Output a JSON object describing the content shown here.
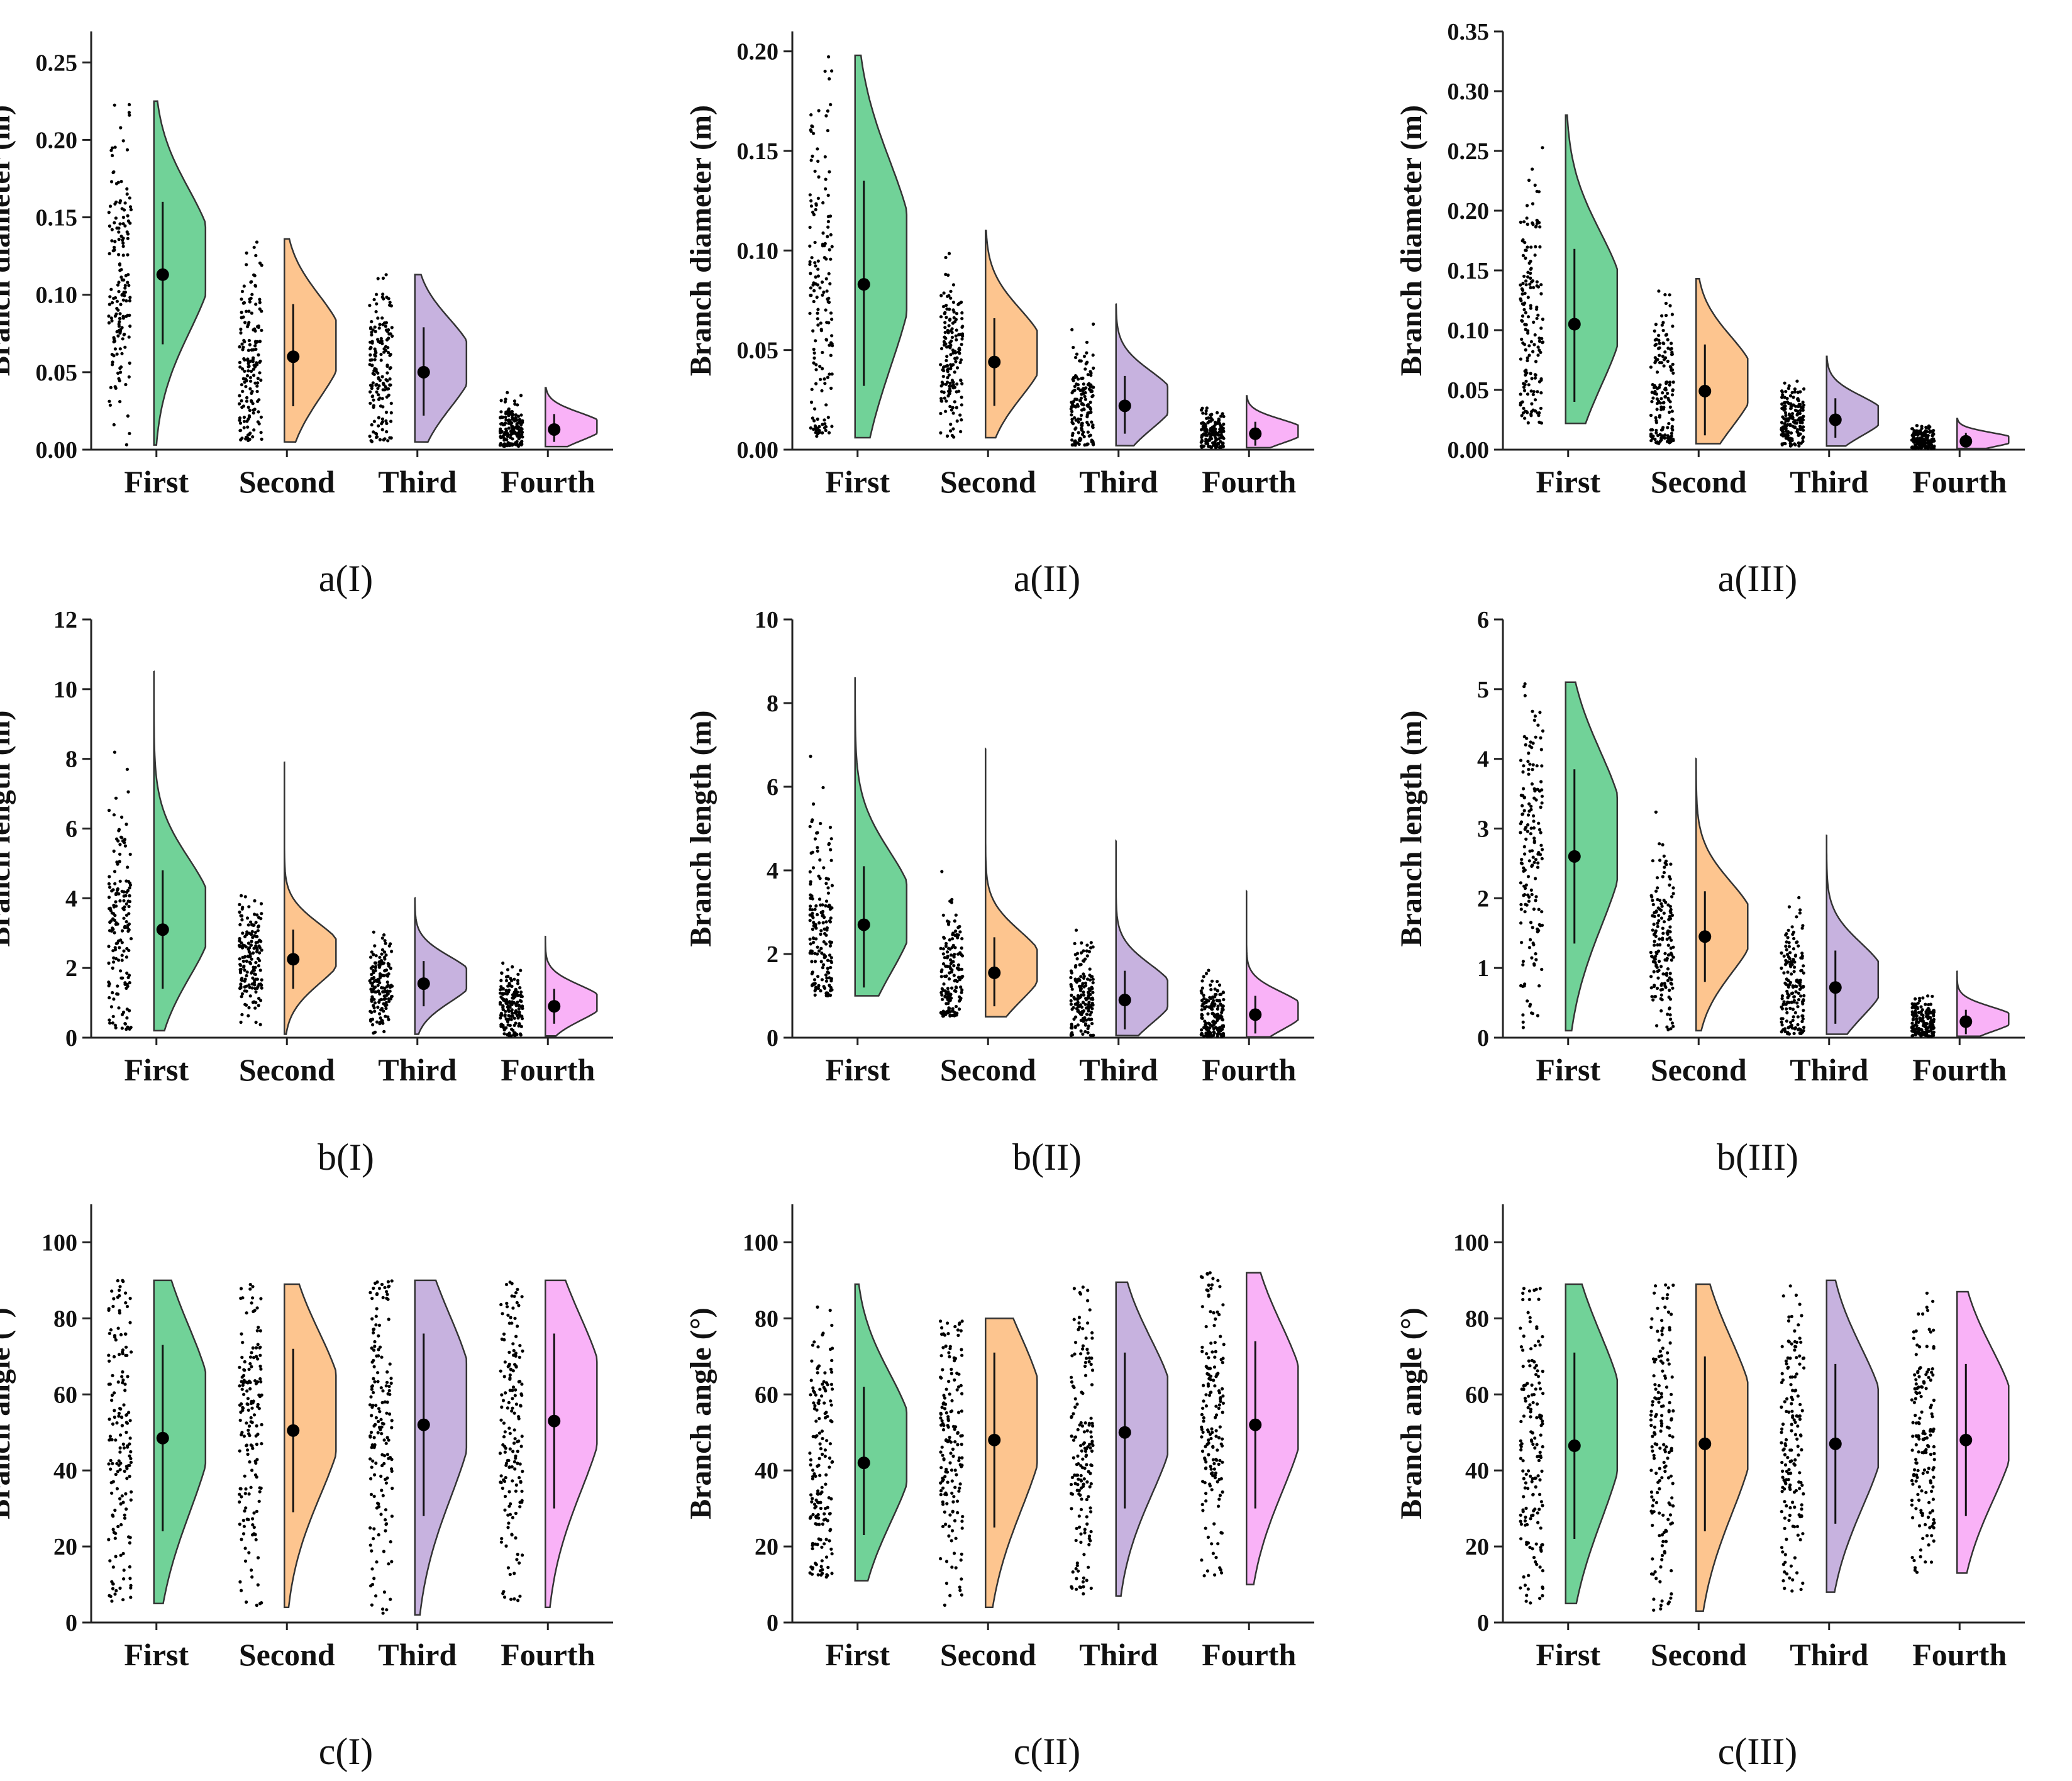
{
  "figure": {
    "category_colors": [
      "#71d298",
      "#fdc58f",
      "#c7b2df",
      "#f9b2f7"
    ],
    "marker_color": "#000000"
  },
  "chart_data": [
    {
      "panel": "a(I)",
      "type": "raincloud",
      "ylabel": "Branch diameter (m)",
      "categories": [
        "First",
        "Second",
        "Third",
        "Fourth"
      ],
      "ylim": [
        0,
        0.27
      ],
      "yticks": [
        0.0,
        0.05,
        0.1,
        0.15,
        0.2,
        0.25
      ],
      "yticklabels": [
        "0.00",
        "0.05",
        "0.10",
        "0.15",
        "0.20",
        "0.25"
      ],
      "series": [
        {
          "name": "First",
          "mean": 0.113,
          "sd_low": 0.068,
          "sd_high": 0.16,
          "min": 0.003,
          "max": 0.225
        },
        {
          "name": "Second",
          "mean": 0.06,
          "sd_low": 0.028,
          "sd_high": 0.094,
          "min": 0.005,
          "max": 0.136
        },
        {
          "name": "Third",
          "mean": 0.05,
          "sd_low": 0.022,
          "sd_high": 0.079,
          "min": 0.005,
          "max": 0.113
        },
        {
          "name": "Fourth",
          "mean": 0.013,
          "sd_low": 0.005,
          "sd_high": 0.023,
          "min": 0.002,
          "max": 0.04
        }
      ]
    },
    {
      "panel": "a(II)",
      "type": "raincloud",
      "ylabel": "Branch diameter (m)",
      "categories": [
        "First",
        "Second",
        "Third",
        "Fourth"
      ],
      "ylim": [
        0,
        0.21
      ],
      "yticks": [
        0.0,
        0.05,
        0.1,
        0.15,
        0.2
      ],
      "yticklabels": [
        "0.00",
        "0.05",
        "0.10",
        "0.15",
        "0.20"
      ],
      "series": [
        {
          "name": "First",
          "mean": 0.083,
          "sd_low": 0.032,
          "sd_high": 0.135,
          "min": 0.006,
          "max": 0.198
        },
        {
          "name": "Second",
          "mean": 0.044,
          "sd_low": 0.022,
          "sd_high": 0.066,
          "min": 0.006,
          "max": 0.11
        },
        {
          "name": "Third",
          "mean": 0.022,
          "sd_low": 0.008,
          "sd_high": 0.037,
          "min": 0.002,
          "max": 0.073
        },
        {
          "name": "Fourth",
          "mean": 0.008,
          "sd_low": 0.002,
          "sd_high": 0.014,
          "min": 0.001,
          "max": 0.027
        }
      ]
    },
    {
      "panel": "a(III)",
      "type": "raincloud",
      "ylabel": "Branch diameter (m)",
      "categories": [
        "First",
        "Second",
        "Third",
        "Fourth"
      ],
      "ylim": [
        0,
        0.35
      ],
      "yticks": [
        0.0,
        0.05,
        0.1,
        0.15,
        0.2,
        0.25,
        0.3,
        0.35
      ],
      "yticklabels": [
        "0.00",
        "0.05",
        "0.10",
        "0.15",
        "0.20",
        "0.25",
        "0.30",
        "0.35"
      ],
      "series": [
        {
          "name": "First",
          "mean": 0.105,
          "sd_low": 0.04,
          "sd_high": 0.168,
          "min": 0.022,
          "max": 0.28
        },
        {
          "name": "Second",
          "mean": 0.049,
          "sd_low": 0.012,
          "sd_high": 0.088,
          "min": 0.005,
          "max": 0.143
        },
        {
          "name": "Third",
          "mean": 0.025,
          "sd_low": 0.01,
          "sd_high": 0.043,
          "min": 0.003,
          "max": 0.078
        },
        {
          "name": "Fourth",
          "mean": 0.007,
          "sd_low": 0.002,
          "sd_high": 0.014,
          "min": 0.001,
          "max": 0.026
        }
      ]
    },
    {
      "panel": "b(I)",
      "type": "raincloud",
      "ylabel": "Branch length (m)",
      "categories": [
        "First",
        "Second",
        "Third",
        "Fourth"
      ],
      "ylim": [
        0,
        12
      ],
      "yticks": [
        0,
        2,
        4,
        6,
        8,
        10,
        12
      ],
      "yticklabels": [
        "0",
        "2",
        "4",
        "6",
        "8",
        "10",
        "12"
      ],
      "series": [
        {
          "name": "First",
          "mean": 3.1,
          "sd_low": 1.4,
          "sd_high": 4.8,
          "min": 0.2,
          "max": 10.5
        },
        {
          "name": "Second",
          "mean": 2.25,
          "sd_low": 1.4,
          "sd_high": 3.1,
          "min": 0.1,
          "max": 7.9
        },
        {
          "name": "Third",
          "mean": 1.55,
          "sd_low": 0.9,
          "sd_high": 2.2,
          "min": 0.1,
          "max": 4.0
        },
        {
          "name": "Fourth",
          "mean": 0.9,
          "sd_low": 0.4,
          "sd_high": 1.4,
          "min": 0.05,
          "max": 2.9
        }
      ]
    },
    {
      "panel": "b(II)",
      "type": "raincloud",
      "ylabel": "Branch length (m)",
      "categories": [
        "First",
        "Second",
        "Third",
        "Fourth"
      ],
      "ylim": [
        0,
        10
      ],
      "yticks": [
        0,
        2,
        4,
        6,
        8,
        10
      ],
      "yticklabels": [
        "0",
        "2",
        "4",
        "6",
        "8",
        "10"
      ],
      "series": [
        {
          "name": "First",
          "mean": 2.7,
          "sd_low": 1.2,
          "sd_high": 4.1,
          "min": 1.0,
          "max": 8.6
        },
        {
          "name": "Second",
          "mean": 1.55,
          "sd_low": 0.75,
          "sd_high": 2.4,
          "min": 0.5,
          "max": 6.9
        },
        {
          "name": "Third",
          "mean": 0.9,
          "sd_low": 0.2,
          "sd_high": 1.6,
          "min": 0.05,
          "max": 4.7
        },
        {
          "name": "Fourth",
          "mean": 0.55,
          "sd_low": 0.1,
          "sd_high": 1.0,
          "min": 0.02,
          "max": 3.5
        }
      ]
    },
    {
      "panel": "b(III)",
      "type": "raincloud",
      "ylabel": "Branch length (m)",
      "categories": [
        "First",
        "Second",
        "Third",
        "Fourth"
      ],
      "ylim": [
        0,
        6
      ],
      "yticks": [
        0,
        1,
        2,
        3,
        4,
        5,
        6
      ],
      "yticklabels": [
        "0",
        "1",
        "2",
        "3",
        "4",
        "5",
        "6"
      ],
      "series": [
        {
          "name": "First",
          "mean": 2.6,
          "sd_low": 1.35,
          "sd_high": 3.85,
          "min": 0.1,
          "max": 5.1
        },
        {
          "name": "Second",
          "mean": 1.45,
          "sd_low": 0.8,
          "sd_high": 2.1,
          "min": 0.1,
          "max": 4.0
        },
        {
          "name": "Third",
          "mean": 0.72,
          "sd_low": 0.2,
          "sd_high": 1.25,
          "min": 0.05,
          "max": 2.9
        },
        {
          "name": "Fourth",
          "mean": 0.23,
          "sd_low": 0.05,
          "sd_high": 0.4,
          "min": 0.02,
          "max": 0.95
        }
      ]
    },
    {
      "panel": "c(I)",
      "type": "raincloud",
      "ylabel": "Branch angle (°)",
      "categories": [
        "First",
        "Second",
        "Third",
        "Fourth"
      ],
      "ylim": [
        0,
        110
      ],
      "yticks": [
        0,
        20,
        40,
        60,
        80,
        100
      ],
      "yticklabels": [
        "0",
        "20",
        "40",
        "60",
        "80",
        "100"
      ],
      "series": [
        {
          "name": "First",
          "mean": 48.5,
          "sd_low": 24,
          "sd_high": 73,
          "min": 5,
          "max": 90
        },
        {
          "name": "Second",
          "mean": 50.5,
          "sd_low": 29,
          "sd_high": 72,
          "min": 4,
          "max": 89
        },
        {
          "name": "Third",
          "mean": 52,
          "sd_low": 28,
          "sd_high": 76,
          "min": 2,
          "max": 90
        },
        {
          "name": "Fourth",
          "mean": 53,
          "sd_low": 30,
          "sd_high": 76,
          "min": 4,
          "max": 90
        }
      ]
    },
    {
      "panel": "c(II)",
      "type": "raincloud",
      "ylabel": "Branch angle (°)",
      "categories": [
        "First",
        "Second",
        "Third",
        "Fourth"
      ],
      "ylim": [
        0,
        110
      ],
      "yticks": [
        0,
        20,
        40,
        60,
        80,
        100
      ],
      "yticklabels": [
        "0",
        "20",
        "40",
        "60",
        "80",
        "100"
      ],
      "series": [
        {
          "name": "First",
          "mean": 42,
          "sd_low": 23,
          "sd_high": 62,
          "min": 11,
          "max": 89
        },
        {
          "name": "Second",
          "mean": 48,
          "sd_low": 25,
          "sd_high": 71,
          "min": 4,
          "max": 80
        },
        {
          "name": "Third",
          "mean": 50,
          "sd_low": 30,
          "sd_high": 71,
          "min": 7,
          "max": 89.5
        },
        {
          "name": "Fourth",
          "mean": 52,
          "sd_low": 30,
          "sd_high": 74,
          "min": 10,
          "max": 92
        }
      ]
    },
    {
      "panel": "c(III)",
      "type": "raincloud",
      "ylabel": "Branch angle (°)",
      "categories": [
        "First",
        "Second",
        "Third",
        "Fourth"
      ],
      "ylim": [
        0,
        110
      ],
      "yticks": [
        0,
        20,
        40,
        60,
        80,
        100
      ],
      "yticklabels": [
        "0",
        "20",
        "40",
        "60",
        "80",
        "100"
      ],
      "series": [
        {
          "name": "First",
          "mean": 46.5,
          "sd_low": 22,
          "sd_high": 71,
          "min": 5,
          "max": 89
        },
        {
          "name": "Second",
          "mean": 47,
          "sd_low": 24,
          "sd_high": 70,
          "min": 3,
          "max": 89
        },
        {
          "name": "Third",
          "mean": 47,
          "sd_low": 26,
          "sd_high": 68,
          "min": 8,
          "max": 90
        },
        {
          "name": "Fourth",
          "mean": 48,
          "sd_low": 28,
          "sd_high": 68,
          "min": 13,
          "max": 87
        }
      ]
    }
  ]
}
